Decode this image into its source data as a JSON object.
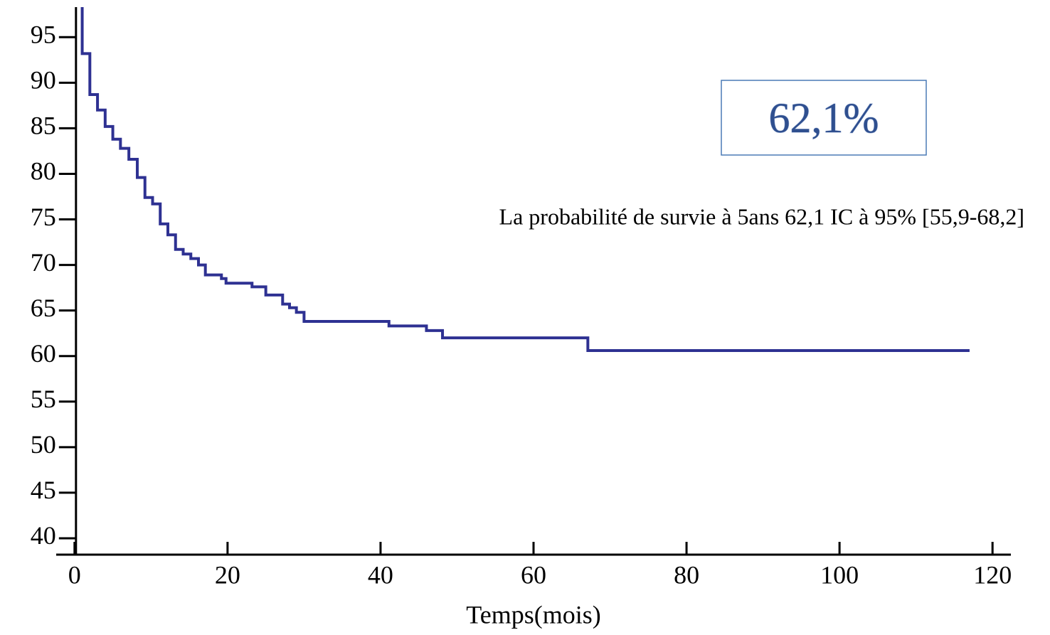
{
  "chart_data": {
    "type": "step",
    "xlabel": "Temps(mois)",
    "annotation": "La probabilité de survie à 5ans  62,1 IC à 95% [55,9-68,2]",
    "highlight": "62,1%",
    "x": [
      0,
      1.0,
      2.0,
      3.0,
      4.0,
      5.0,
      6.0,
      7.1,
      8.2,
      9.2,
      10.2,
      11.2,
      12.2,
      13.2,
      14.2,
      15.2,
      16.2,
      17.1,
      19.2,
      19.8,
      23.2,
      25.0,
      27.2,
      28.1,
      29.0,
      30.0,
      41.1,
      46.0,
      48.1,
      67.1,
      117.0
    ],
    "values": [
      100,
      93.2,
      88.7,
      87.0,
      85.2,
      83.8,
      82.8,
      81.6,
      79.6,
      77.4,
      76.7,
      74.5,
      73.3,
      71.7,
      71.2,
      70.7,
      70.0,
      68.9,
      68.5,
      68.0,
      67.6,
      66.7,
      65.7,
      65.3,
      64.8,
      63.8,
      63.3,
      62.8,
      62.0,
      60.6,
      60.6
    ],
    "color": "#2e3192",
    "xlim": [
      -2.4,
      122.4
    ],
    "ylim": [
      38.2,
      98.3
    ],
    "xticks": [
      0,
      20,
      40,
      60,
      80,
      100,
      120
    ],
    "yticks": [
      40,
      45,
      50,
      55,
      60,
      65,
      70,
      75,
      80,
      85,
      90,
      95
    ]
  }
}
